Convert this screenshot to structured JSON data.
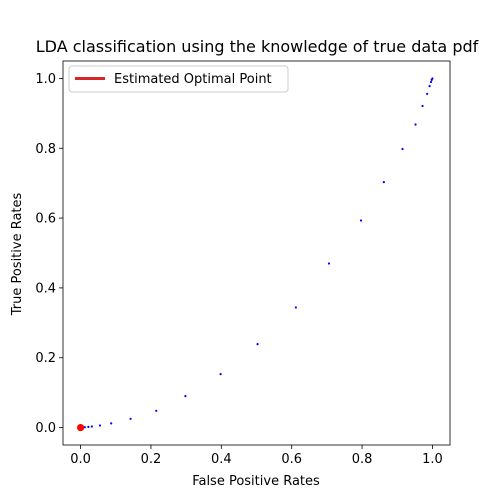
{
  "chart_data": {
    "type": "scatter",
    "title": "LDA classification using the knowledge of true data pdf",
    "xlabel": "False Positive Rates",
    "ylabel": "True Positive Rates",
    "xlim": [
      -0.05,
      1.05
    ],
    "ylim": [
      -0.05,
      1.05
    ],
    "xticks": [
      "0.0",
      "0.2",
      "0.4",
      "0.6",
      "0.8",
      "1.0"
    ],
    "yticks": [
      "0.0",
      "0.2",
      "0.4",
      "0.6",
      "0.8",
      "1.0"
    ],
    "grid": false,
    "legend_placement": "top-left",
    "series": [
      {
        "color": "#0000ff",
        "x": [
          0.0,
          0.012,
          0.022,
          0.032,
          0.055,
          0.087,
          0.142,
          0.215,
          0.298,
          0.398,
          0.503,
          0.612,
          0.706,
          0.797,
          0.862,
          0.915,
          0.952,
          0.972,
          0.985,
          0.992,
          0.996,
          0.998,
          1.0
        ],
        "y": [
          0.0,
          0.001,
          0.002,
          0.003,
          0.006,
          0.012,
          0.025,
          0.048,
          0.09,
          0.153,
          0.239,
          0.344,
          0.47,
          0.593,
          0.703,
          0.798,
          0.868,
          0.921,
          0.956,
          0.978,
          0.99,
          0.996,
          1.0
        ]
      },
      {
        "name": "Estimated Optimal Point",
        "color": "#ff0000",
        "x": [
          0.0
        ],
        "y": [
          0.0
        ]
      }
    ],
    "legend": [
      {
        "label": "Estimated Optimal Point",
        "color": "#d62728"
      }
    ]
  }
}
